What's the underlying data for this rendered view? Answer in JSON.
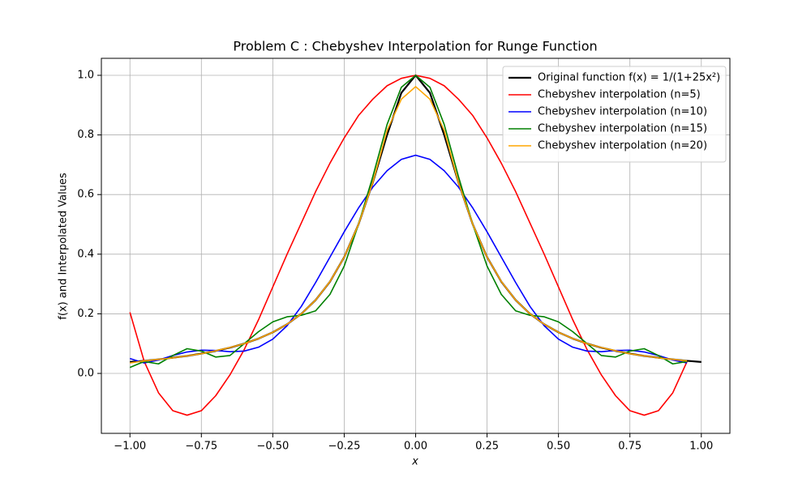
{
  "chart_data": {
    "type": "line",
    "title": "Problem C : Chebyshev Interpolation for Runge Function",
    "x_label": "x",
    "y_label": "f(x) and Interpolated Values",
    "x": [
      -1.0,
      -0.95,
      -0.9,
      -0.85,
      -0.8,
      -0.75,
      -0.7,
      -0.65,
      -0.6,
      -0.55,
      -0.5,
      -0.45,
      -0.4,
      -0.35,
      -0.3,
      -0.25,
      -0.2,
      -0.15,
      -0.1,
      -0.05,
      0.0,
      0.05,
      0.1,
      0.15,
      0.2,
      0.25,
      0.3,
      0.35,
      0.4,
      0.45,
      0.5,
      0.55,
      0.6,
      0.65,
      0.7,
      0.75,
      0.8,
      0.85,
      0.9,
      0.95,
      1.0
    ],
    "series": [
      {
        "name": "Original function f(x) = 1/(1+25x²)",
        "color": "#000000",
        "width": 2.2,
        "values": [
          0.0385,
          0.0424,
          0.0471,
          0.0525,
          0.0588,
          0.0664,
          0.0755,
          0.0865,
          0.1,
          0.1168,
          0.1379,
          0.1649,
          0.2,
          0.2462,
          0.3077,
          0.3902,
          0.5,
          0.64,
          0.8,
          0.9412,
          1.0,
          0.9412,
          0.8,
          0.64,
          0.5,
          0.3902,
          0.3077,
          0.2462,
          0.2,
          0.1649,
          0.1379,
          0.1168,
          0.1,
          0.0865,
          0.0755,
          0.0664,
          0.0588,
          0.0525,
          0.0471,
          0.0424,
          0.0385
        ]
      },
      {
        "name": "Chebyshev interpolation (n=5)",
        "color": "#ff0000",
        "width": 1.6,
        "values": [
          0.205,
          0.04,
          -0.065,
          -0.125,
          -0.14,
          -0.125,
          -0.075,
          -0.005,
          0.08,
          0.18,
          0.29,
          0.4,
          0.505,
          0.61,
          0.705,
          0.79,
          0.865,
          0.92,
          0.965,
          0.99,
          1.0,
          0.99,
          0.965,
          0.92,
          0.865,
          0.79,
          0.705,
          0.61,
          0.505,
          0.4,
          0.29,
          0.18,
          0.08,
          -0.005,
          -0.075,
          -0.125,
          -0.14,
          -0.125,
          -0.065,
          0.04,
          null
        ]
      },
      {
        "name": "Chebyshev interpolation (n=10)",
        "color": "#0000ff",
        "width": 1.6,
        "values": [
          0.05,
          0.035,
          0.045,
          0.06,
          0.072,
          0.078,
          0.077,
          0.073,
          0.075,
          0.088,
          0.115,
          0.16,
          0.225,
          0.305,
          0.39,
          0.475,
          0.555,
          0.625,
          0.68,
          0.718,
          0.732,
          0.718,
          0.68,
          0.625,
          0.555,
          0.475,
          0.39,
          0.305,
          0.225,
          0.16,
          0.115,
          0.088,
          0.075,
          0.073,
          0.077,
          0.078,
          0.072,
          0.06,
          0.045,
          0.035,
          null
        ]
      },
      {
        "name": "Chebyshev interpolation (n=15)",
        "color": "#008000",
        "width": 1.6,
        "values": [
          0.02,
          0.04,
          0.032,
          0.06,
          0.083,
          0.075,
          0.055,
          0.06,
          0.1,
          0.14,
          0.173,
          0.19,
          0.195,
          0.21,
          0.265,
          0.36,
          0.5,
          0.66,
          0.835,
          0.96,
          1.0,
          0.96,
          0.835,
          0.66,
          0.5,
          0.36,
          0.265,
          0.21,
          0.195,
          0.19,
          0.173,
          0.14,
          0.1,
          0.06,
          0.055,
          0.075,
          0.083,
          0.06,
          0.032,
          0.04,
          null
        ]
      },
      {
        "name": "Chebyshev interpolation (n=20)",
        "color": "#ffa500",
        "width": 1.6,
        "values": [
          0.035,
          0.042,
          0.047,
          0.052,
          0.059,
          0.066,
          0.076,
          0.087,
          0.1,
          0.117,
          0.138,
          0.165,
          0.2,
          0.246,
          0.308,
          0.39,
          0.5,
          0.64,
          0.815,
          0.92,
          0.962,
          0.92,
          0.815,
          0.64,
          0.5,
          0.39,
          0.308,
          0.246,
          0.2,
          0.165,
          0.138,
          0.117,
          0.1,
          0.087,
          0.076,
          0.066,
          0.059,
          0.052,
          0.047,
          0.042,
          null
        ]
      }
    ],
    "xlim": [
      -1.1,
      1.1
    ],
    "ylim": [
      -0.201,
      1.057
    ],
    "xticks": [
      {
        "value": -1,
        "label": "−1.00"
      },
      {
        "value": -0.75,
        "label": "−0.75"
      },
      {
        "value": -0.5,
        "label": "−0.50"
      },
      {
        "value": -0.25,
        "label": "−0.25"
      },
      {
        "value": 0,
        "label": "0.00"
      },
      0.25,
      {
        "value": 0.5,
        "label": "0.50"
      },
      0.75,
      {
        "value": 1,
        "label": "1.00"
      }
    ],
    "yticks": [
      {
        "value": 0,
        "label": "0.0"
      },
      0.2,
      0.4,
      0.6,
      0.8,
      {
        "value": 1,
        "label": "1.0"
      }
    ],
    "grid": true,
    "legend": "upper right"
  }
}
